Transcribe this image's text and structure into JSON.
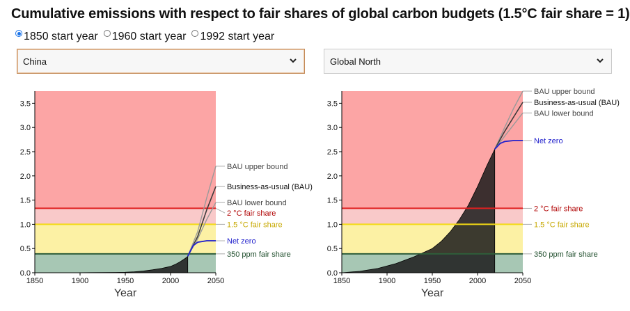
{
  "title": "Cumulative emissions with respect to fair shares of global carbon budgets (1.5°C fair share = 1)",
  "start_year_options": [
    {
      "label": "1850 start year",
      "selected": true
    },
    {
      "label": "1960 start year",
      "selected": false
    },
    {
      "label": "1992 start year",
      "selected": false
    }
  ],
  "left_select": {
    "value": "China"
  },
  "right_select": {
    "value": "Global North"
  },
  "colors": {
    "unsafe": "#fca5a5",
    "over_15": "#f9c9c9",
    "over_350": "#fcf1a4",
    "safe": "#a7c7b4",
    "two_deg_line": "#e02020",
    "one_five_line": "#f3d914",
    "ppm350_line": "#2e5d3a",
    "net_zero": "#2121cc",
    "historical_fill": "#1c1c1c"
  },
  "chart_data": [
    {
      "type": "area",
      "region": "China",
      "xlabel": "Year",
      "ylabel": "",
      "xlim": [
        1850,
        2050
      ],
      "ylim": [
        0,
        3.75
      ],
      "x_ticks": [
        "1850",
        "1900",
        "1950",
        "2000",
        "2050"
      ],
      "y_ticks": [
        "0.0",
        "0.5",
        "1.0",
        "1.5",
        "2.0",
        "2.5",
        "3.0",
        "3.5"
      ],
      "thresholds": [
        {
          "name": "2 °C fair share",
          "value": 1.33
        },
        {
          "name": "1.5 °C fair share",
          "value": 1.0
        },
        {
          "name": "350 ppm fair share",
          "value": 0.39
        }
      ],
      "historical": {
        "x": [
          1850,
          1900,
          1940,
          1950,
          1960,
          1970,
          1980,
          1990,
          2000,
          2005,
          2010,
          2015,
          2018,
          2019
        ],
        "y": [
          0,
          0.002,
          0.006,
          0.01,
          0.02,
          0.035,
          0.06,
          0.09,
          0.13,
          0.17,
          0.22,
          0.28,
          0.32,
          0.34
        ]
      },
      "series": [
        {
          "name": "BAU upper bound",
          "x": [
            2019,
            2030,
            2040,
            2050
          ],
          "y": [
            0.34,
            0.85,
            1.55,
            2.2
          ]
        },
        {
          "name": "Business-as-usual (BAU)",
          "x": [
            2019,
            2030,
            2040,
            2050
          ],
          "y": [
            0.34,
            0.75,
            1.3,
            1.78
          ]
        },
        {
          "name": "BAU lower bound",
          "x": [
            2019,
            2030,
            2040,
            2050
          ],
          "y": [
            0.34,
            0.7,
            1.1,
            1.45
          ]
        },
        {
          "name": "Net zero",
          "x": [
            2019,
            2025,
            2030,
            2040,
            2050
          ],
          "y": [
            0.34,
            0.56,
            0.63,
            0.66,
            0.66
          ]
        }
      ]
    },
    {
      "type": "area",
      "region": "Global North",
      "xlabel": "Year",
      "ylabel": "",
      "xlim": [
        1850,
        2050
      ],
      "ylim": [
        0,
        3.75
      ],
      "x_ticks": [
        "1850",
        "1900",
        "1950",
        "2000",
        "2050"
      ],
      "y_ticks": [
        "0.0",
        "0.5",
        "1.0",
        "1.5",
        "2.0",
        "2.5",
        "3.0",
        "3.5"
      ],
      "thresholds": [
        {
          "name": "2 °C fair share",
          "value": 1.33
        },
        {
          "name": "1.5 °C fair share",
          "value": 1.0
        },
        {
          "name": "350 ppm fair share",
          "value": 0.39
        }
      ],
      "historical": {
        "x": [
          1850,
          1870,
          1890,
          1910,
          1930,
          1950,
          1960,
          1970,
          1980,
          1990,
          2000,
          2010,
          2019
        ],
        "y": [
          0,
          0.03,
          0.09,
          0.19,
          0.33,
          0.5,
          0.65,
          0.85,
          1.1,
          1.4,
          1.78,
          2.2,
          2.55
        ]
      },
      "series": [
        {
          "name": "BAU upper bound",
          "x": [
            2019,
            2030,
            2040,
            2050
          ],
          "y": [
            2.55,
            3.0,
            3.4,
            3.75
          ]
        },
        {
          "name": "Business-as-usual (BAU)",
          "x": [
            2019,
            2030,
            2040,
            2050
          ],
          "y": [
            2.55,
            2.92,
            3.22,
            3.52
          ]
        },
        {
          "name": "BAU lower bound",
          "x": [
            2019,
            2030,
            2040,
            2050
          ],
          "y": [
            2.55,
            2.82,
            3.06,
            3.3
          ]
        },
        {
          "name": "Net zero",
          "x": [
            2019,
            2025,
            2030,
            2040,
            2050
          ],
          "y": [
            2.55,
            2.67,
            2.71,
            2.73,
            2.73
          ]
        }
      ]
    }
  ]
}
